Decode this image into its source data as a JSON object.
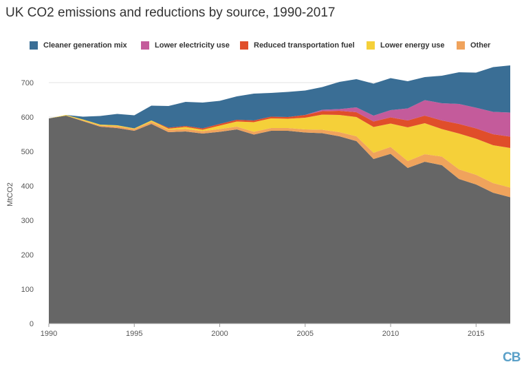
{
  "title": "UK CO2 emissions and reductions by source, 1990-2017",
  "logo_text": "CB",
  "chart_data": {
    "type": "area",
    "stacked": true,
    "title": "UK CO2 emissions and reductions by source, 1990-2017",
    "ylabel": "MtCO2",
    "xlabel": "",
    "xlim": [
      1990,
      2017
    ],
    "ylim": [
      0,
      750
    ],
    "xticks": [
      1990,
      1995,
      2000,
      2005,
      2010,
      2015
    ],
    "yticks": [
      0,
      100,
      200,
      300,
      400,
      500,
      600,
      700
    ],
    "grid": true,
    "legend_position": "top",
    "x": [
      1990,
      1991,
      1992,
      1993,
      1994,
      1995,
      1996,
      1997,
      1998,
      1999,
      2000,
      2001,
      2002,
      2003,
      2004,
      2005,
      2006,
      2007,
      2008,
      2009,
      2010,
      2011,
      2012,
      2013,
      2014,
      2015,
      2016,
      2017
    ],
    "series": [
      {
        "name": "",
        "color": "#666666",
        "values": [
          596,
          604,
          588,
          572,
          568,
          560,
          580,
          556,
          558,
          552,
          557,
          564,
          549,
          560,
          560,
          555,
          553,
          544,
          530,
          478,
          493,
          452,
          470,
          460,
          420,
          404,
          380,
          367
        ]
      },
      {
        "name": "Other",
        "color": "#f0a35c",
        "values": [
          0,
          0,
          2,
          3,
          5,
          5,
          6,
          7,
          7,
          7,
          8,
          8,
          8,
          8,
          8,
          9,
          10,
          12,
          14,
          18,
          20,
          20,
          22,
          25,
          28,
          28,
          28,
          28
        ]
      },
      {
        "name": "Lower energy use",
        "color": "#f5d039",
        "values": [
          0,
          2,
          3,
          3,
          3,
          2,
          4,
          3,
          6,
          4,
          10,
          15,
          28,
          28,
          27,
          34,
          44,
          50,
          56,
          75,
          68,
          98,
          90,
          80,
          104,
          105,
          110,
          115
        ]
      },
      {
        "name": "Reduced transportation fuel",
        "color": "#e04e2a",
        "values": [
          0,
          0,
          0,
          0,
          0,
          0,
          0,
          3,
          3,
          4,
          5,
          5,
          5,
          5,
          5,
          8,
          10,
          12,
          14,
          16,
          18,
          20,
          22,
          25,
          28,
          30,
          32,
          33
        ]
      },
      {
        "name": "Lower electricity use",
        "color": "#c45b9b",
        "values": [
          0,
          0,
          0,
          0,
          0,
          0,
          0,
          0,
          0,
          0,
          0,
          0,
          0,
          0,
          0,
          0,
          4,
          5,
          14,
          17,
          21,
          35,
          45,
          50,
          58,
          60,
          65,
          70
        ]
      },
      {
        "name": "Cleaner generation mix",
        "color": "#3a6e95",
        "values": [
          0,
          0,
          8,
          25,
          33,
          38,
          43,
          63,
          70,
          75,
          67,
          68,
          78,
          69,
          73,
          71,
          66,
          79,
          82,
          93,
          93,
          79,
          67,
          80,
          92,
          102,
          130,
          137
        ]
      }
    ]
  },
  "legend": [
    {
      "label": "Cleaner generation mix",
      "color": "#3a6e95"
    },
    {
      "label": "Lower electricity use",
      "color": "#c45b9b"
    },
    {
      "label": "Reduced transportation fuel",
      "color": "#e04e2a"
    },
    {
      "label": "Lower energy use",
      "color": "#f5d039"
    },
    {
      "label": "Other",
      "color": "#f0a35c"
    }
  ]
}
